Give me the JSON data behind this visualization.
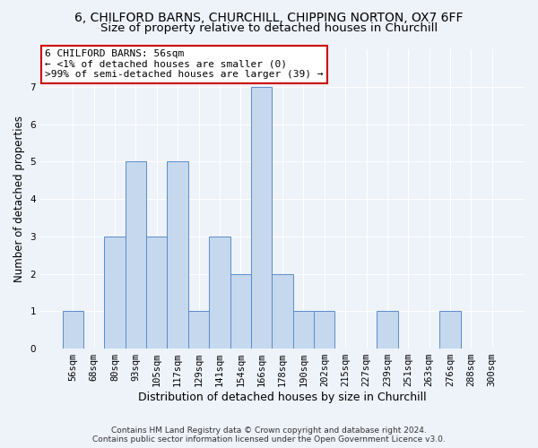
{
  "title_line1": "6, CHILFORD BARNS, CHURCHILL, CHIPPING NORTON, OX7 6FF",
  "title_line2": "Size of property relative to detached houses in Churchill",
  "xlabel": "Distribution of detached houses by size in Churchill",
  "ylabel": "Number of detached properties",
  "categories": [
    "56sqm",
    "68sqm",
    "80sqm",
    "93sqm",
    "105sqm",
    "117sqm",
    "129sqm",
    "141sqm",
    "154sqm",
    "166sqm",
    "178sqm",
    "190sqm",
    "202sqm",
    "215sqm",
    "227sqm",
    "239sqm",
    "251sqm",
    "263sqm",
    "276sqm",
    "288sqm",
    "300sqm"
  ],
  "values": [
    1,
    0,
    3,
    5,
    3,
    5,
    1,
    3,
    2,
    7,
    2,
    1,
    1,
    0,
    0,
    1,
    0,
    0,
    1,
    0,
    0
  ],
  "bar_color": "#c5d8ee",
  "bar_edge_color": "#5b8dc8",
  "annotation_line1": "6 CHILFORD BARNS: 56sqm",
  "annotation_line2": "← <1% of detached houses are smaller (0)",
  "annotation_line3": ">99% of semi-detached houses are larger (39) →",
  "annotation_box_facecolor": "#ffffff",
  "annotation_box_edgecolor": "#cc0000",
  "ylim": [
    0,
    8
  ],
  "yticks": [
    0,
    1,
    2,
    3,
    4,
    5,
    6,
    7
  ],
  "footer": "Contains HM Land Registry data © Crown copyright and database right 2024.\nContains public sector information licensed under the Open Government Licence v3.0.",
  "background_color": "#eef2f9",
  "plot_background": "#eef2f9",
  "grid_color": "#ffffff",
  "title_fontsize": 10,
  "subtitle_fontsize": 9.5,
  "xlabel_fontsize": 9,
  "ylabel_fontsize": 8.5,
  "tick_fontsize": 7.5,
  "annotation_fontsize": 8,
  "footer_fontsize": 6.5
}
